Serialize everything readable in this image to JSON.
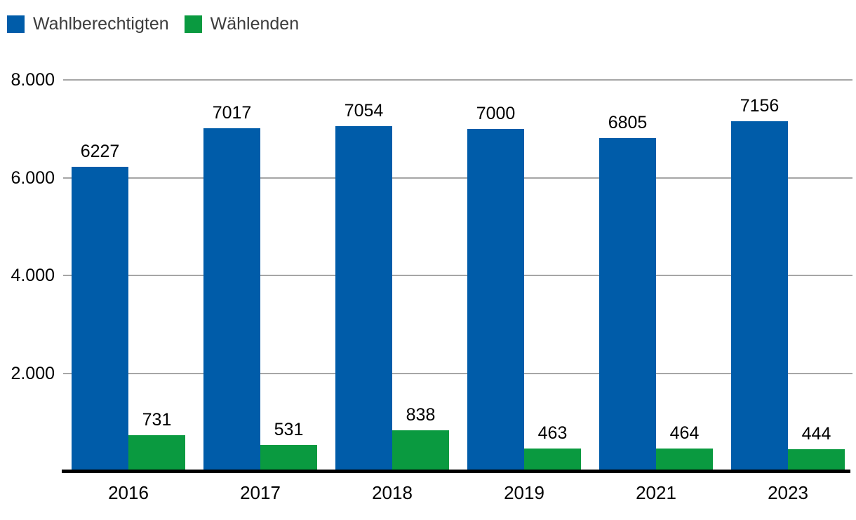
{
  "legend": {
    "items": [
      {
        "label": "Wahlberechtigten",
        "color": "#005CA9"
      },
      {
        "label": "Wählenden",
        "color": "#0A9A40"
      }
    ]
  },
  "chart_data": {
    "type": "bar",
    "title": "",
    "xlabel": "",
    "ylabel": "",
    "categories": [
      "2016",
      "2017",
      "2018",
      "2019",
      "2021",
      "2023"
    ],
    "series": [
      {
        "name": "Wahlberechtigten",
        "color": "#005CA9",
        "values": [
          6227,
          7017,
          7054,
          7000,
          6805,
          7156
        ]
      },
      {
        "name": "Wählenden",
        "color": "#0A9A40",
        "values": [
          731,
          531,
          838,
          463,
          464,
          444
        ]
      }
    ],
    "ylim": [
      0,
      8000
    ],
    "yticks": [
      2000,
      4000,
      6000,
      8000
    ],
    "ytick_labels": [
      "2.000",
      "4.000",
      "6.000",
      "8.000"
    ],
    "grid": true,
    "legend_position": "top-left",
    "value_labels_shown": true
  },
  "colors": {
    "background": "#ffffff",
    "gridline": "#a6a6a6",
    "axis_line": "#000000",
    "tick_text": "#000000",
    "value_text": "#000000",
    "legend_text": "#3c3c3c"
  }
}
